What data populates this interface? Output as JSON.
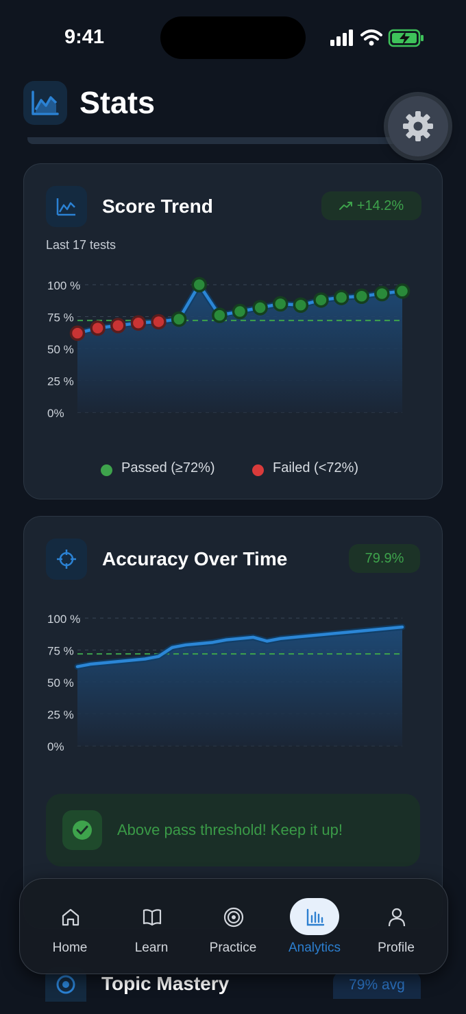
{
  "status_bar": {
    "time": "9:41"
  },
  "header": {
    "title": "Stats",
    "icon": "chart-line-icon",
    "settings_icon": "gear-icon"
  },
  "score_trend": {
    "title": "Score Trend",
    "icon": "chart-line-icon",
    "badge": "+14.2%",
    "badge_icon": "trending-up-icon",
    "subtitle": "Last 17 tests",
    "legend_passed": "Passed (≥72%)",
    "legend_failed": "Failed (<72%)",
    "colors": {
      "passed": "#3ea34c",
      "failed": "#d93b3b",
      "line": "#2b86d6"
    }
  },
  "accuracy": {
    "title": "Accuracy Over Time",
    "icon": "crosshair-icon",
    "badge": "79.9%",
    "message": "Above pass threshold! Keep it up!",
    "message_icon": "check-circle-icon"
  },
  "topic_mastery": {
    "title": "Topic Mastery",
    "badge": "79% avg",
    "icon": "target-icon"
  },
  "nav": {
    "items": [
      {
        "label": "Home",
        "icon": "home-icon"
      },
      {
        "label": "Learn",
        "icon": "book-icon"
      },
      {
        "label": "Practice",
        "icon": "target-icon"
      },
      {
        "label": "Analytics",
        "icon": "bar-chart-icon",
        "active": true
      },
      {
        "label": "Profile",
        "icon": "user-icon"
      }
    ]
  },
  "chart_data": [
    {
      "type": "line",
      "ylim": [
        0,
        100
      ],
      "yticks": [
        "100 %",
        "75 %",
        "50 %",
        "25 %",
        "0%"
      ],
      "threshold": 72,
      "x": [
        1,
        2,
        3,
        4,
        5,
        6,
        7,
        8,
        9,
        10,
        11,
        12,
        13,
        14,
        15,
        16,
        17
      ],
      "series": [
        {
          "name": "",
          "values": [
            62,
            66,
            68,
            70,
            71,
            73,
            100,
            76,
            79,
            82,
            85,
            84,
            88,
            90,
            91,
            93,
            95
          ],
          "status": [
            "failed",
            "failed",
            "failed",
            "failed",
            "failed",
            "passed",
            "passed",
            "passed",
            "passed",
            "passed",
            "passed",
            "passed",
            "passed",
            "passed",
            "passed",
            "passed",
            "passed"
          ]
        }
      ],
      "legend": [
        "Passed (≥72%)",
        "Failed (<72%)"
      ],
      "legend_position": "bottom"
    },
    {
      "type": "area",
      "ylim": [
        0,
        100
      ],
      "yticks": [
        "100 %",
        "75 %",
        "50 %",
        "25 %",
        "0%"
      ],
      "threshold": 72,
      "x": [
        1,
        2,
        3,
        4,
        5,
        6,
        7,
        8,
        9,
        10,
        11,
        12,
        13,
        14,
        15,
        16,
        17,
        18,
        19,
        20,
        21,
        22,
        23,
        24,
        25
      ],
      "series": [
        {
          "name": "",
          "values": [
            62,
            64,
            65,
            66,
            67,
            68,
            70,
            77,
            79,
            80,
            81,
            83,
            84,
            85,
            82,
            84,
            85,
            86,
            87,
            88,
            89,
            90,
            91,
            92,
            93
          ]
        }
      ]
    }
  ]
}
